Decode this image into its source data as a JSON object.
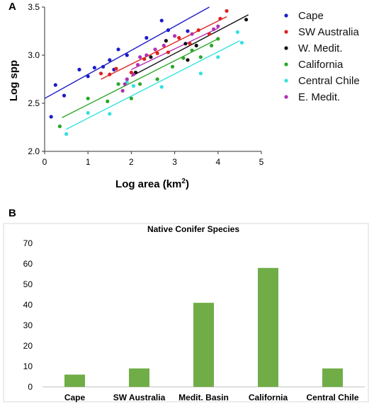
{
  "chart_data": [
    {
      "panel_label": "A",
      "type": "scatter",
      "xlabel": "Log area (km",
      "xlabel_sup": "2",
      "xlabel_end": ")",
      "ylabel": "Log spp",
      "xlim": [
        0,
        5
      ],
      "ylim": [
        2.0,
        3.5
      ],
      "xticks": [
        "0",
        "1",
        "2",
        "3",
        "4",
        "5"
      ],
      "yticks": [
        "2.0",
        "2.5",
        "3.0",
        "3.5"
      ],
      "series": [
        {
          "name": "Cape",
          "color": "#1c1cc8",
          "points": [
            [
              0.15,
              2.36
            ],
            [
              0.25,
              2.69
            ],
            [
              0.45,
              2.58
            ],
            [
              0.8,
              2.85
            ],
            [
              1.0,
              2.78
            ],
            [
              1.15,
              2.87
            ],
            [
              1.35,
              2.88
            ],
            [
              1.5,
              2.95
            ],
            [
              1.6,
              2.85
            ],
            [
              1.7,
              3.06
            ],
            [
              1.9,
              3.0
            ],
            [
              2.35,
              3.18
            ],
            [
              2.7,
              3.36
            ],
            [
              2.85,
              3.26
            ],
            [
              3.3,
              3.25
            ]
          ],
          "fit": [
            [
              0.0,
              2.55
            ],
            [
              3.8,
              3.5
            ]
          ]
        },
        {
          "name": "SW Australia",
          "color": "#e02020",
          "points": [
            [
              1.3,
              2.81
            ],
            [
              1.5,
              2.8
            ],
            [
              1.65,
              2.86
            ],
            [
              2.0,
              2.82
            ],
            [
              2.3,
              2.96
            ],
            [
              2.6,
              3.02
            ],
            [
              2.85,
              3.03
            ],
            [
              3.1,
              3.18
            ],
            [
              3.35,
              3.12
            ],
            [
              3.55,
              3.26
            ],
            [
              3.8,
              3.22
            ],
            [
              4.05,
              3.38
            ],
            [
              4.2,
              3.46
            ]
          ],
          "fit": [
            [
              1.3,
              2.75
            ],
            [
              4.2,
              3.4
            ]
          ]
        },
        {
          "name": "W. Medit.",
          "color": "#111111",
          "points": [
            [
              2.1,
              2.82
            ],
            [
              2.45,
              2.98
            ],
            [
              2.8,
              3.15
            ],
            [
              3.25,
              3.12
            ],
            [
              3.3,
              2.95
            ],
            [
              3.5,
              3.1
            ],
            [
              4.65,
              3.37
            ]
          ],
          "fit": [
            [
              2.0,
              2.78
            ],
            [
              4.7,
              3.42
            ]
          ]
        },
        {
          "name": "California",
          "color": "#28a828",
          "points": [
            [
              0.35,
              2.26
            ],
            [
              1.0,
              2.55
            ],
            [
              1.45,
              2.52
            ],
            [
              1.7,
              2.7
            ],
            [
              2.0,
              2.55
            ],
            [
              2.2,
              2.7
            ],
            [
              2.6,
              2.75
            ],
            [
              2.95,
              2.88
            ],
            [
              3.2,
              2.97
            ],
            [
              3.4,
              3.05
            ],
            [
              3.6,
              2.98
            ],
            [
              3.85,
              3.1
            ],
            [
              4.0,
              3.17
            ]
          ],
          "fit": [
            [
              0.4,
              2.35
            ],
            [
              4.0,
              3.17
            ]
          ]
        },
        {
          "name": "Central Chile",
          "color": "#33e0e0",
          "points": [
            [
              0.5,
              2.18
            ],
            [
              1.0,
              2.4
            ],
            [
              1.5,
              2.39
            ],
            [
              1.9,
              2.72
            ],
            [
              2.05,
              2.68
            ],
            [
              2.7,
              2.67
            ],
            [
              3.6,
              2.81
            ],
            [
              4.0,
              2.98
            ],
            [
              4.45,
              3.24
            ],
            [
              4.55,
              3.13
            ]
          ],
          "fit": [
            [
              0.5,
              2.23
            ],
            [
              4.5,
              3.15
            ]
          ]
        },
        {
          "name": "E. Medit.",
          "color": "#b030b0",
          "points": [
            [
              1.8,
              2.63
            ],
            [
              1.85,
              2.7
            ],
            [
              1.9,
              2.75
            ],
            [
              2.05,
              2.8
            ],
            [
              2.15,
              2.9
            ],
            [
              2.2,
              2.98
            ],
            [
              2.35,
              3.0
            ],
            [
              2.55,
              3.06
            ],
            [
              2.75,
              3.1
            ],
            [
              3.0,
              3.2
            ],
            [
              3.4,
              3.22
            ],
            [
              3.9,
              3.27
            ],
            [
              4.0,
              3.3
            ]
          ],
          "fit": [
            [
              2.0,
              2.85
            ],
            [
              4.0,
              3.28
            ]
          ]
        }
      ],
      "legend_position": "right"
    },
    {
      "panel_label": "B",
      "type": "bar",
      "title": "Native Conifer Species",
      "categories": [
        "Cape",
        "SW Australia",
        "Medit. Basin",
        "California",
        "Central Chile"
      ],
      "values": [
        6,
        9,
        41,
        58,
        9
      ],
      "ylim": [
        0,
        70
      ],
      "yticks": [
        "0",
        "10",
        "20",
        "30",
        "40",
        "50",
        "60",
        "70"
      ],
      "bar_color": "#70ad47",
      "grid": false
    }
  ]
}
